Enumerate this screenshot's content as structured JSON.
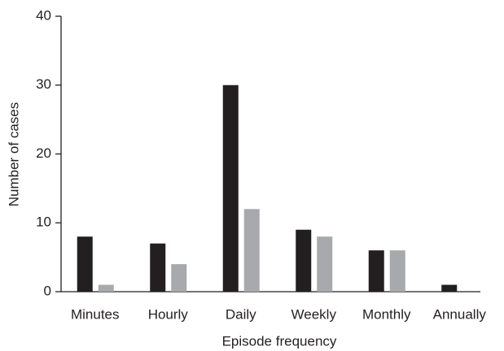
{
  "chart_data": {
    "type": "bar",
    "categories": [
      "Minutes",
      "Hourly",
      "Daily",
      "Weekly",
      "Monthly",
      "Annually"
    ],
    "series": [
      {
        "color": "#231f20",
        "values": [
          8,
          7,
          30,
          9,
          6,
          1
        ]
      },
      {
        "color": "#a7a9ac",
        "values": [
          1,
          4,
          12,
          8,
          6,
          0
        ]
      }
    ],
    "x_label": "Episode frequency",
    "y_label": "Number of cases",
    "ylim": [
      0,
      40
    ],
    "yticks": [
      0,
      10,
      20,
      30,
      40
    ],
    "grid": false
  }
}
